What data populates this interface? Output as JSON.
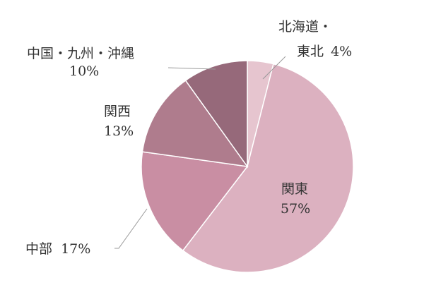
{
  "chart_data": {
    "type": "pie",
    "start": "12 o'clock",
    "direction": "clockwise",
    "slices": [
      {
        "label": "北海道・",
        "label2": "東北",
        "pct_text": "4%",
        "value": 4,
        "color": "#e6c5cf"
      },
      {
        "label": "関東",
        "label2": "",
        "pct_text": "57%",
        "value": 57,
        "color": "#dcb1c0"
      },
      {
        "label": "中部",
        "label2": "",
        "pct_text": "17%",
        "value": 17,
        "color": "#c98ea3"
      },
      {
        "label": "関西",
        "label2": "",
        "pct_text": "13%",
        "value": 13,
        "color": "#af7c8d"
      },
      {
        "label": "中国・九州・沖縄",
        "label2": "",
        "pct_text": "10%",
        "value": 10,
        "color": "#96697a"
      }
    ]
  }
}
